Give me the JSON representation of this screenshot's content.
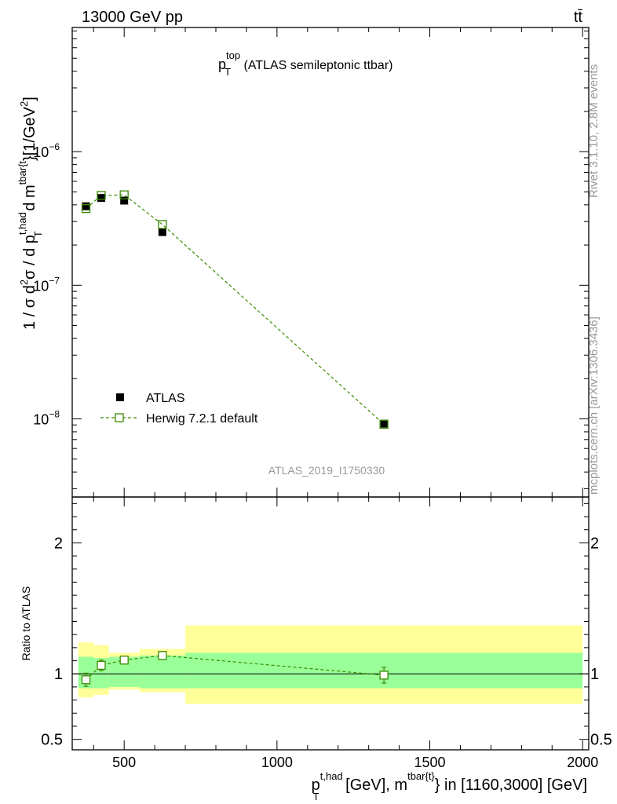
{
  "header": {
    "energy_label": "13000 GeV pp",
    "process_label": "tt̄"
  },
  "side_labels": {
    "rivet": "Rivet 3.1.10,  2.8M events",
    "mcplots": "mcplots.cern.ch [arXiv:1306.3436]"
  },
  "chart_data": [
    {
      "type": "scatter",
      "panel": "main",
      "title": "p_T^top (ATLAS semileptonic ttbar)",
      "title_parts": {
        "base": "p",
        "sub": "T",
        "sup": "top",
        "rest": " (ATLAS semileptonic ttbar)"
      },
      "analysis_label": "ATLAS_2019_I1750330",
      "ylabel": "1 / σ d²σ / d p_T^{t,had} d m^{tbar{t}} [1/GeV²]",
      "yscale": "log",
      "ylim": [
        2.6e-09,
        8.5e-06
      ],
      "xlim": [
        330,
        2020
      ],
      "y_ticks": [
        {
          "value": 1e-08,
          "mant": "10",
          "exp": "−8"
        },
        {
          "value": 1e-07,
          "mant": "10",
          "exp": "−7"
        },
        {
          "value": 1e-06,
          "mant": "10",
          "exp": "−6"
        }
      ],
      "legend": {
        "position": "bottom-left",
        "data_label": "ATLAS",
        "mc_label": "Herwig 7.2.1 default"
      },
      "series": [
        {
          "name": "ATLAS",
          "style": "black-filled-square",
          "x": [
            375,
            425,
            500,
            625,
            1350
          ],
          "y": [
            3.9e-07,
            4.5e-07,
            4.3e-07,
            2.5e-07,
            9.2e-09
          ]
        },
        {
          "name": "Herwig 7.2.1 default",
          "style": "green-open-square-dashed",
          "x": [
            375,
            425,
            500,
            625,
            1350
          ],
          "y": [
            3.75e-07,
            4.7e-07,
            4.75e-07,
            2.85e-07,
            9.1e-09
          ]
        }
      ]
    },
    {
      "type": "scatter",
      "panel": "ratio",
      "ylabel": "Ratio to ATLAS",
      "xlabel": "p_T^{t,had} [GeV], m^{tbar{t}} in [1160,3000] [GeV]",
      "xlabel_parts": {
        "p": "p",
        "p_sup": "t,had",
        "p_sub": "T",
        "mid": " [GeV], m",
        "m_sup": "tbar{t}",
        "rest": "} in [1160,3000] [GeV]"
      },
      "ylim": [
        0.42,
        2.35
      ],
      "xlim": [
        330,
        2020
      ],
      "x_ticks": [
        500,
        1000,
        1500,
        2000
      ],
      "y_ticks_left": [
        "0.5",
        "1",
        "2"
      ],
      "y_ticks_right": [
        "0.5",
        "1",
        "2"
      ],
      "y_tick_values": [
        0.5,
        1,
        2
      ],
      "bins": [
        {
          "lo": 350,
          "hi": 400,
          "stat_lo": 0.89,
          "stat_hi": 1.13,
          "tot_lo": 0.82,
          "tot_hi": 1.24
        },
        {
          "lo": 400,
          "hi": 450,
          "stat_lo": 0.89,
          "stat_hi": 1.12,
          "tot_lo": 0.84,
          "tot_hi": 1.22
        },
        {
          "lo": 450,
          "hi": 550,
          "stat_lo": 0.9,
          "stat_hi": 1.13,
          "tot_lo": 0.88,
          "tot_hi": 1.16
        },
        {
          "lo": 550,
          "hi": 700,
          "stat_lo": 0.89,
          "stat_hi": 1.14,
          "tot_lo": 0.86,
          "tot_hi": 1.19
        },
        {
          "lo": 700,
          "hi": 2000,
          "stat_lo": 0.89,
          "stat_hi": 1.16,
          "tot_lo": 0.77,
          "tot_hi": 1.37
        }
      ],
      "ratio": {
        "x": [
          375,
          425,
          500,
          625,
          1350
        ],
        "y": [
          0.955,
          1.065,
          1.105,
          1.14,
          0.99
        ],
        "err": [
          0.05,
          0.04,
          0.03,
          0.03,
          0.06
        ]
      }
    }
  ]
}
